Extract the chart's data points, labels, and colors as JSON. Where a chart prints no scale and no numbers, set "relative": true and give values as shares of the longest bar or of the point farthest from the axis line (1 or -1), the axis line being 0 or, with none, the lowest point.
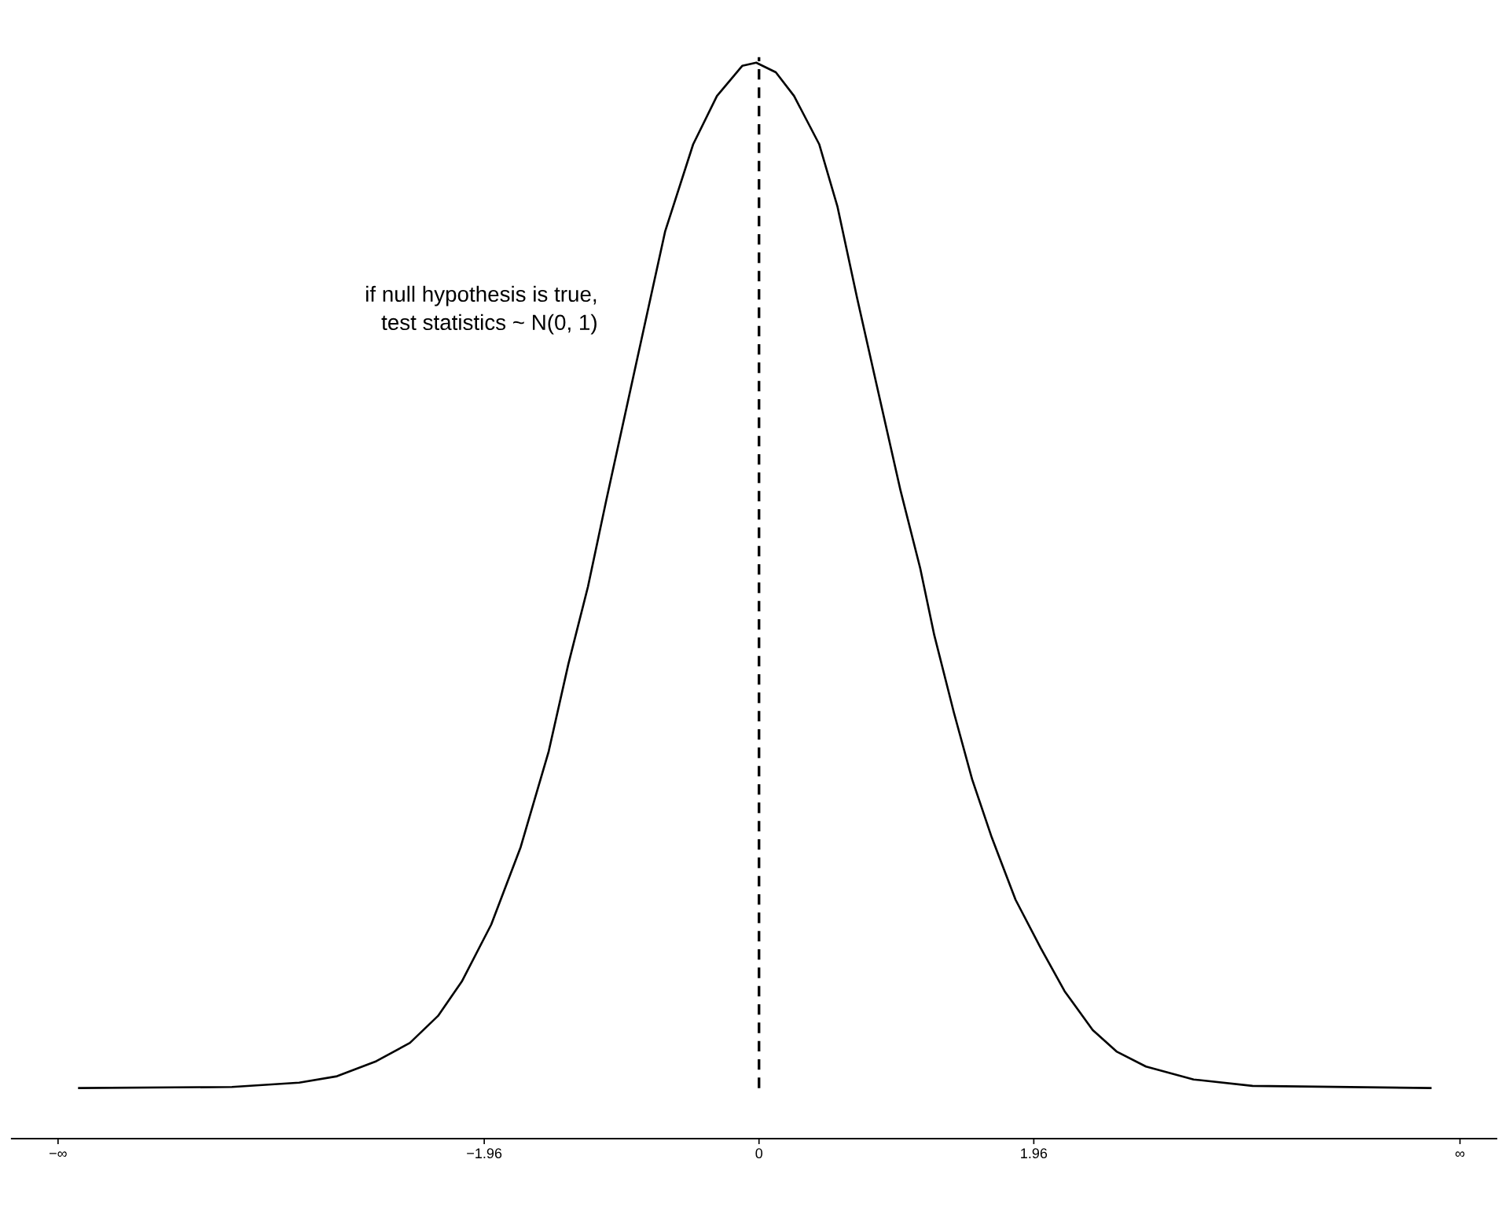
{
  "chart_data": {
    "type": "line",
    "relative": true,
    "x": [
      -4.85,
      -3.76,
      -3.28,
      -3.01,
      -2.73,
      -2.49,
      -2.29,
      -2.12,
      -1.91,
      -1.7,
      -1.5,
      -1.36,
      -1.22,
      -1.09,
      -0.88,
      -0.67,
      -0.47,
      -0.3,
      -0.12,
      -0.02,
      0.12,
      0.25,
      0.43,
      0.56,
      0.7,
      0.84,
      1.01,
      1.15,
      1.25,
      1.39,
      1.52,
      1.66,
      1.83,
      2.01,
      2.18,
      2.38,
      2.55,
      2.76,
      3.1,
      3.52,
      4.79
    ],
    "series": [
      {
        "color": "#000000",
        "values": [
          0.047,
          0.048,
          0.052,
          0.058,
          0.072,
          0.089,
          0.114,
          0.146,
          0.199,
          0.271,
          0.36,
          0.441,
          0.513,
          0.593,
          0.718,
          0.843,
          0.924,
          0.969,
          0.997,
          1.0,
          0.991,
          0.969,
          0.924,
          0.866,
          0.781,
          0.7,
          0.602,
          0.53,
          0.468,
          0.396,
          0.334,
          0.28,
          0.222,
          0.177,
          0.137,
          0.101,
          0.081,
          0.067,
          0.055,
          0.049,
          0.047
        ]
      }
    ],
    "xlim": [
      -5.33,
      5.26
    ],
    "xticks": [
      {
        "value": -5,
        "label": "−∞"
      },
      {
        "value": -1.96,
        "label": "−1.96"
      },
      0,
      {
        "value": 1.96,
        "label": "1.96"
      },
      {
        "value": 5,
        "label": "∞"
      }
    ],
    "ref_lines": [
      {
        "axis": "x",
        "value": 0,
        "line_style": "dashed",
        "color": "#000000"
      }
    ],
    "annotations": [
      "if null hypothesis is true,\ntest statistics ~ N(0, 1)"
    ],
    "tick_labels": "x",
    "grid": false,
    "legend": false,
    "marker": "none",
    "line_style": "solid"
  }
}
